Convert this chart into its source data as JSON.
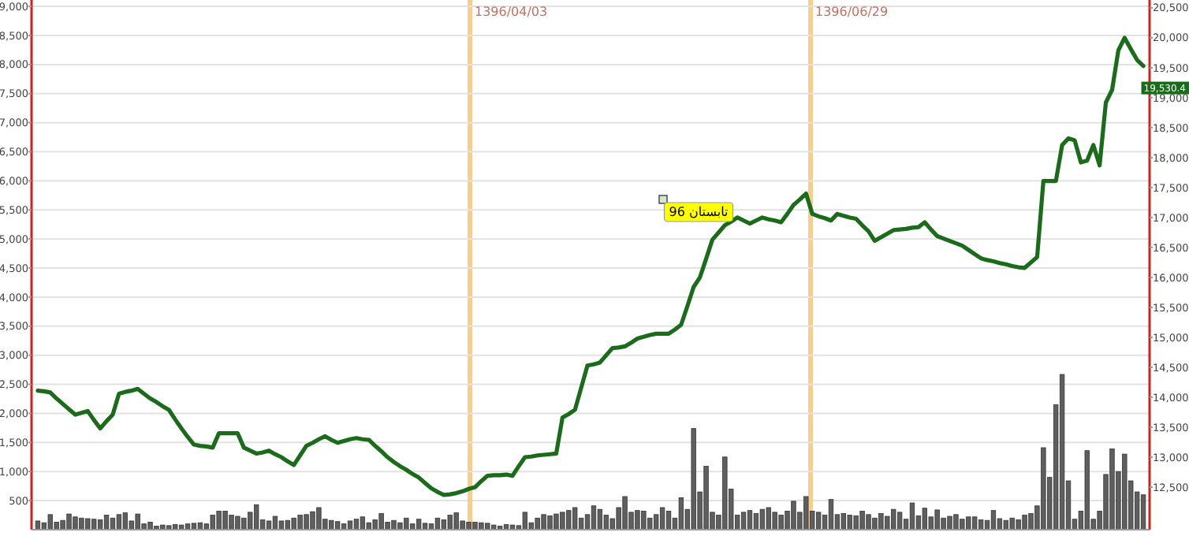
{
  "chart_data": {
    "type": "bar",
    "categories": [
      null,
      null,
      null,
      null,
      null,
      null,
      null,
      null,
      null,
      null,
      null,
      null,
      null,
      null,
      null,
      null,
      null,
      null,
      null,
      null,
      null,
      null,
      null,
      null,
      null,
      null,
      null,
      null,
      null,
      null,
      null,
      null,
      null,
      null,
      null,
      null,
      null,
      null,
      null,
      null,
      null,
      null,
      null,
      null,
      null,
      null,
      null,
      null,
      null,
      null,
      null,
      null,
      null,
      null,
      null,
      null,
      null,
      null,
      null,
      null,
      null,
      null,
      null,
      null,
      null,
      null,
      null,
      null,
      null,
      null,
      null,
      null,
      null,
      null,
      null,
      null,
      null,
      null,
      null,
      null,
      null,
      null,
      null,
      null,
      null,
      null,
      null,
      null,
      null,
      null,
      null,
      null,
      null,
      null,
      null,
      null,
      null,
      null,
      null,
      null,
      null,
      null,
      null,
      null,
      null,
      null,
      null,
      null,
      null,
      null,
      null,
      null,
      null,
      null,
      null,
      null,
      null,
      null,
      null,
      null,
      null,
      null,
      null,
      null,
      null,
      null,
      null,
      null,
      null,
      null,
      null,
      null,
      null,
      null,
      null,
      null,
      null,
      null,
      null,
      null,
      null,
      null,
      null,
      null,
      null,
      null,
      null,
      null,
      null,
      null,
      null,
      null,
      null,
      null,
      null,
      null,
      null,
      null,
      null,
      null,
      null,
      null,
      null,
      null,
      null,
      null,
      null,
      null,
      null,
      null,
      null,
      null,
      null,
      null,
      null,
      null,
      null,
      null
    ],
    "series": [
      {
        "axis": "y",
        "color": "#5f5f5f",
        "values": [
          150,
          120,
          260,
          130,
          160,
          270,
          220,
          200,
          190,
          180,
          170,
          250,
          200,
          260,
          290,
          150,
          270,
          100,
          130,
          60,
          80,
          70,
          90,
          80,
          100,
          110,
          120,
          100,
          250,
          320,
          320,
          250,
          230,
          200,
          300,
          430,
          170,
          150,
          230,
          150,
          160,
          200,
          250,
          260,
          310,
          380,
          180,
          160,
          140,
          100,
          150,
          180,
          220,
          120,
          170,
          280,
          130,
          160,
          120,
          200,
          100,
          180,
          110,
          100,
          200,
          170,
          250,
          290,
          150,
          130,
          130,
          120,
          110,
          80,
          60,
          90,
          80,
          70,
          300,
          120,
          200,
          260,
          240,
          270,
          300,
          330,
          380,
          200,
          260,
          410,
          350,
          250,
          190,
          380,
          570,
          300,
          330,
          320,
          200,
          260,
          380,
          320,
          200,
          550,
          350,
          1740,
          650,
          1090,
          300,
          250,
          1250,
          700,
          250,
          300,
          330,
          280,
          350,
          380,
          300,
          250,
          320,
          490,
          300,
          570,
          320,
          300,
          250,
          520,
          260,
          280,
          250,
          240,
          320,
          260,
          200,
          280,
          230,
          350,
          300,
          180,
          460,
          240,
          370,
          220,
          340,
          200,
          230,
          260,
          180,
          220,
          220,
          170,
          160,
          330,
          190,
          160,
          200,
          170,
          250,
          280,
          410,
          1410,
          900,
          2150,
          2670,
          840,
          180,
          320,
          1360,
          180,
          320,
          950,
          1390,
          1000,
          1300,
          840,
          650,
          600
        ]
      },
      {
        "type": "line",
        "axis": "y2",
        "color": "#1a6b1a",
        "values": [
          14110,
          14100,
          14080,
          13980,
          13890,
          13800,
          13710,
          13740,
          13770,
          13620,
          13480,
          13600,
          13710,
          14060,
          14090,
          14110,
          14140,
          14060,
          13980,
          13920,
          13850,
          13790,
          13630,
          13480,
          13340,
          13210,
          13190,
          13180,
          13160,
          13400,
          13400,
          13400,
          13400,
          13160,
          13110,
          13060,
          13080,
          13110,
          13050,
          13000,
          12930,
          12870,
          13030,
          13190,
          13240,
          13300,
          13350,
          13290,
          13240,
          13270,
          13300,
          13320,
          13300,
          13290,
          13190,
          13100,
          13000,
          12920,
          12850,
          12790,
          12720,
          12660,
          12570,
          12480,
          12420,
          12370,
          12380,
          12400,
          12430,
          12470,
          12500,
          12600,
          12690,
          12700,
          12700,
          12710,
          12690,
          12850,
          13000,
          13010,
          13030,
          13040,
          13050,
          13060,
          13660,
          13720,
          13790,
          14160,
          14530,
          14550,
          14580,
          14700,
          14820,
          14830,
          14850,
          14910,
          14980,
          15010,
          15040,
          15060,
          15060,
          15060,
          15130,
          15210,
          15520,
          15840,
          16000,
          16310,
          16630,
          16750,
          16870,
          16930,
          17000,
          16950,
          16900,
          16950,
          17000,
          16970,
          16950,
          16920,
          17060,
          17210,
          17300,
          17400,
          17060,
          17020,
          16990,
          16950,
          17060,
          17030,
          17000,
          16980,
          16870,
          16770,
          16610,
          16670,
          16730,
          16790,
          16800,
          16810,
          16830,
          16840,
          16920,
          16800,
          16690,
          16650,
          16610,
          16570,
          16530,
          16460,
          16390,
          16320,
          16290,
          16270,
          16240,
          16220,
          16190,
          16170,
          16160,
          16250,
          16340,
          17610,
          17610,
          17610,
          18210,
          18320,
          18290,
          17920,
          17950,
          18210,
          17870,
          18920,
          19130,
          19790,
          20000,
          19810,
          19630,
          19530
        ]
      }
    ],
    "ylim": [
      0,
      9110
    ],
    "yticks": [
      {
        "value": 500,
        "label": "500"
      },
      {
        "value": 1000,
        "label": "1,000"
      },
      {
        "value": 1500,
        "label": "1,500"
      },
      {
        "value": 2000,
        "label": "2,000"
      },
      {
        "value": 2500,
        "label": "2,500"
      },
      {
        "value": 3000,
        "label": "3,000"
      },
      {
        "value": 3500,
        "label": "3,500"
      },
      {
        "value": 4000,
        "label": "4,000"
      },
      {
        "value": 4500,
        "label": "4,500"
      },
      {
        "value": 5000,
        "label": "5,000"
      },
      {
        "value": 5500,
        "label": "5,500"
      },
      {
        "value": 6000,
        "label": "6,000"
      },
      {
        "value": 6500,
        "label": "6,500"
      },
      {
        "value": 7000,
        "label": "7,000"
      },
      {
        "value": 7500,
        "label": "7,500"
      },
      {
        "value": 8000,
        "label": "8,000"
      },
      {
        "value": 8500,
        "label": "8,500"
      },
      {
        "value": 9000,
        "label": "9,000"
      }
    ],
    "y2lim": [
      11790,
      20630
    ],
    "y2ticks": [
      {
        "value": 12500,
        "label": "12,500"
      },
      {
        "value": 13000,
        "label": "13,000"
      },
      {
        "value": 13500,
        "label": "13,500"
      },
      {
        "value": 14000,
        "label": "14,000"
      },
      {
        "value": 14500,
        "label": "14,500"
      },
      {
        "value": 15000,
        "label": "15,000"
      },
      {
        "value": 15500,
        "label": "15,500"
      },
      {
        "value": 16000,
        "label": "16,000"
      },
      {
        "value": 16500,
        "label": "16,500"
      },
      {
        "value": 17000,
        "label": "17,000"
      },
      {
        "value": 17500,
        "label": "17,500"
      },
      {
        "value": 18000,
        "label": "18,000"
      },
      {
        "value": 18500,
        "label": "18,500"
      },
      {
        "value": 19000,
        "label": "19,000"
      },
      {
        "value": 19500,
        "label": "19,500"
      },
      {
        "value": 20000,
        "label": "20,000"
      },
      {
        "value": 20500,
        "label": "20,500"
      }
    ],
    "grid": "y",
    "annotations": [
      "تابستان 96",
      "1396/04/03",
      "1396/06/29",
      "19,530.4"
    ]
  }
}
